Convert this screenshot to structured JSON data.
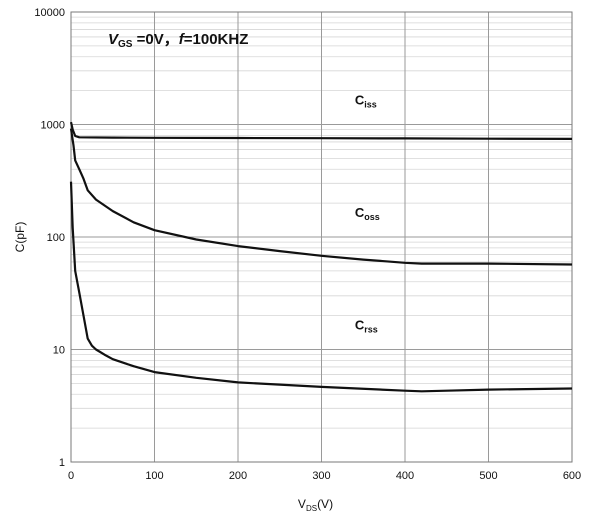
{
  "chart_data": {
    "type": "line",
    "x_scale": "linear",
    "y_scale": "log",
    "xlim": [
      0,
      600
    ],
    "ylim": [
      1,
      10000
    ],
    "x_ticks": [
      0,
      100,
      200,
      300,
      400,
      500,
      600
    ],
    "y_ticks": [
      1,
      10,
      100,
      1000,
      10000
    ],
    "x_tick_labels": [
      "0",
      "100",
      "200",
      "300",
      "400",
      "500",
      "600"
    ],
    "y_tick_labels": [
      "1",
      "10",
      "100",
      "1000",
      "10000"
    ],
    "xlabel": {
      "main": "V",
      "sub": "DS",
      "suffix": "(V)"
    },
    "ylabel": "C(pF)",
    "grid": true,
    "condition": {
      "v": "V",
      "v_sub": "GS",
      "eq": " =0V，",
      "f": "f",
      "f_eq": "=100KHZ"
    },
    "series": [
      {
        "name": "Ciss",
        "label_main": "C",
        "label_sub": "iss",
        "x": [
          0,
          2,
          5,
          10,
          50,
          100,
          200,
          300,
          400,
          500,
          600
        ],
        "y": [
          1050,
          900,
          790,
          770,
          765,
          762,
          758,
          755,
          752,
          748,
          745
        ]
      },
      {
        "name": "Coss",
        "label_main": "C",
        "label_sub": "oss",
        "x": [
          0,
          3,
          5,
          10,
          15,
          20,
          30,
          50,
          75,
          100,
          150,
          200,
          250,
          300,
          350,
          400,
          420,
          500,
          600
        ],
        "y": [
          920,
          650,
          480,
          400,
          330,
          260,
          215,
          170,
          135,
          115,
          95,
          83,
          75,
          68,
          63,
          59,
          58,
          58,
          57
        ]
      },
      {
        "name": "Crss",
        "label_main": "C",
        "label_sub": "rss",
        "x": [
          0,
          2,
          5,
          10,
          15,
          20,
          25,
          30,
          40,
          50,
          75,
          100,
          150,
          200,
          300,
          400,
          420,
          450,
          500,
          600
        ],
        "y": [
          310,
          120,
          50,
          32,
          20,
          12.5,
          10.8,
          10,
          9,
          8.2,
          7.1,
          6.3,
          5.6,
          5.1,
          4.65,
          4.3,
          4.25,
          4.3,
          4.4,
          4.5
        ]
      }
    ]
  }
}
